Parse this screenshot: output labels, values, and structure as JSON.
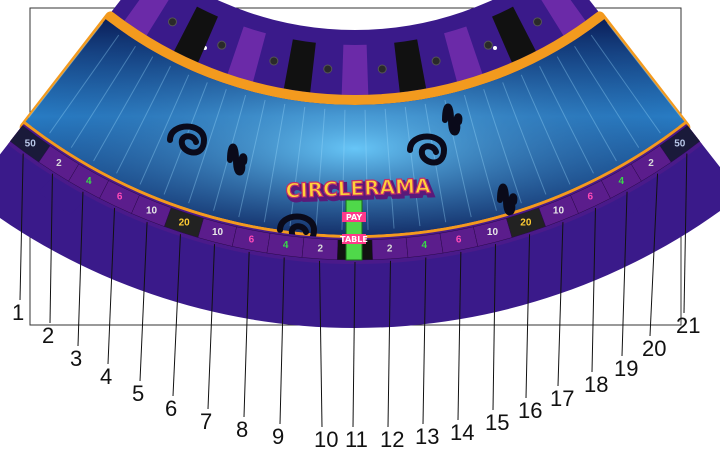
{
  "title": "CIRCLERAMA",
  "pointer_text": [
    "PAY",
    "TABLE"
  ],
  "slots": [
    {
      "number": "1",
      "value": "50",
      "color": "#b9c7e8",
      "bg": "#1a1a3a"
    },
    {
      "number": "2",
      "value": "2",
      "color": "#d8d8d8",
      "bg": "#5b1d8c"
    },
    {
      "number": "3",
      "value": "4",
      "color": "#39d84a",
      "bg": "#5b1d8c"
    },
    {
      "number": "4",
      "value": "6",
      "color": "#ff4ab8",
      "bg": "#5b1d8c"
    },
    {
      "number": "5",
      "value": "10",
      "color": "#e8e8e8",
      "bg": "#5b1d8c"
    },
    {
      "number": "6",
      "value": "20",
      "color": "#ffcc33",
      "bg": "#222222"
    },
    {
      "number": "7",
      "value": "10",
      "color": "#e8e8e8",
      "bg": "#5b1d8c"
    },
    {
      "number": "8",
      "value": "6",
      "color": "#ff4ab8",
      "bg": "#5b1d8c"
    },
    {
      "number": "9",
      "value": "4",
      "color": "#39d84a",
      "bg": "#5b1d8c"
    },
    {
      "number": "10",
      "value": "2",
      "color": "#d8d8d8",
      "bg": "#5b1d8c"
    },
    {
      "number": "11",
      "value": "",
      "color": "#888888",
      "bg": "#111111"
    },
    {
      "number": "12",
      "value": "2",
      "color": "#d8d8d8",
      "bg": "#5b1d8c"
    },
    {
      "number": "13",
      "value": "4",
      "color": "#39d84a",
      "bg": "#5b1d8c"
    },
    {
      "number": "14",
      "value": "6",
      "color": "#ff4ab8",
      "bg": "#5b1d8c"
    },
    {
      "number": "15",
      "value": "10",
      "color": "#e8e8e8",
      "bg": "#5b1d8c"
    },
    {
      "number": "16",
      "value": "20",
      "color": "#ffcc33",
      "bg": "#222222"
    },
    {
      "number": "17",
      "value": "10",
      "color": "#e8e8e8",
      "bg": "#5b1d8c"
    },
    {
      "number": "18",
      "value": "6",
      "color": "#ff4ab8",
      "bg": "#5b1d8c"
    },
    {
      "number": "19",
      "value": "4",
      "color": "#39d84a",
      "bg": "#5b1d8c"
    },
    {
      "number": "20",
      "value": "2",
      "color": "#d8d8d8",
      "bg": "#5b1d8c"
    },
    {
      "number": "21",
      "value": "50",
      "color": "#b9c7e8",
      "bg": "#1a1a3a"
    }
  ],
  "colors": {
    "outer_band": "#3a1a8a",
    "top_stripe_purple": "#6b2aa8",
    "top_stripe_black": "#111111",
    "orange_rim": "#f39a1e",
    "inner_blue_light": "#3aa0e0",
    "inner_blue_dark": "#0b2a6a",
    "swirl": "#0a0a1a"
  }
}
